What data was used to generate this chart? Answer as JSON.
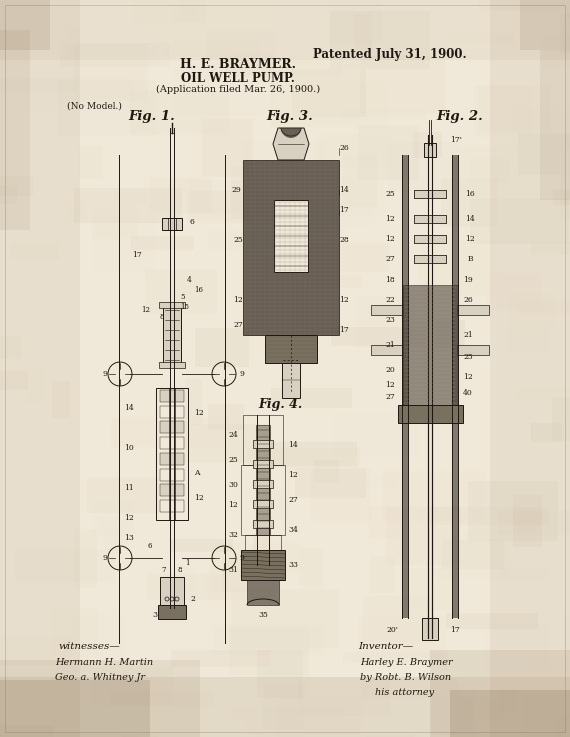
{
  "title_line1": "H. E. BRAYMER.",
  "title_line2": "OIL WELL PUMP.",
  "title_line3": "(Application filed Mar. 26, 1900.)",
  "patent_date": "Patented July 31, 1900.",
  "no_model": "(No Model.)",
  "fig1_label": "Fig. 1.",
  "fig2_label": "Fig. 2.",
  "fig3_label": "Fig. 3.",
  "fig4_label": "Fig. 4.",
  "witnesses_label": "witnesses—",
  "witness1": "Hermann H. Martin",
  "witness2": "Geo. a. Whitney Jr",
  "inventor_label": "Inventor—",
  "inventor1": "Harley E. Braymer",
  "inventor2": "by Robt. B. Wilson",
  "inventor3": "his attorney",
  "bg_light": "#f0e8d8",
  "bg_mid": "#e0d4c0",
  "bg_dark": "#c8b898",
  "ink": "#1e1810",
  "dark_fill": "#3a3028",
  "mid_fill": "#7a7060",
  "light_fill": "#d8d0c0",
  "hatch_fill": "#5a5040"
}
